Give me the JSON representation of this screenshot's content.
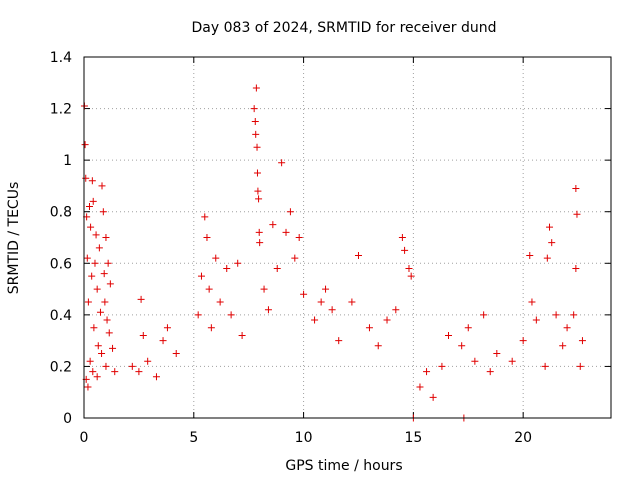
{
  "chart_data": {
    "type": "scatter",
    "title": "Day 083 of 2024, SRMTID for receiver dund",
    "xlabel": "GPS time / hours",
    "ylabel": "SRMTID / TECUs",
    "xlim": [
      0,
      24
    ],
    "ylim": [
      0,
      1.4
    ],
    "xticks": [
      0,
      5,
      10,
      15,
      20
    ],
    "xtick_labels": [
      "0",
      "5",
      "10",
      "15",
      "20"
    ],
    "yticks": [
      0,
      0.2,
      0.4,
      0.6,
      0.8,
      1.0,
      1.2,
      1.4
    ],
    "ytick_labels": [
      "0",
      "0.2",
      "0.4",
      "0.6",
      "0.8",
      "1",
      "1.2",
      "1.4"
    ],
    "grid": true,
    "marker": "+",
    "color": "#e00000",
    "series": [
      {
        "name": "SRMTID",
        "points": [
          [
            0.02,
            1.21
          ],
          [
            0.05,
            1.06
          ],
          [
            0.08,
            0.93
          ],
          [
            0.12,
            0.78
          ],
          [
            0.15,
            0.62
          ],
          [
            0.2,
            0.45
          ],
          [
            0.25,
            0.82
          ],
          [
            0.3,
            0.74
          ],
          [
            0.35,
            0.55
          ],
          [
            0.38,
            0.92
          ],
          [
            0.42,
            0.84
          ],
          [
            0.45,
            0.35
          ],
          [
            0.5,
            0.6
          ],
          [
            0.55,
            0.71
          ],
          [
            0.6,
            0.5
          ],
          [
            0.65,
            0.28
          ],
          [
            0.7,
            0.66
          ],
          [
            0.75,
            0.41
          ],
          [
            0.82,
            0.9
          ],
          [
            0.88,
            0.8
          ],
          [
            0.92,
            0.56
          ],
          [
            0.95,
            0.45
          ],
          [
            1.0,
            0.7
          ],
          [
            1.05,
            0.38
          ],
          [
            1.1,
            0.6
          ],
          [
            1.15,
            0.33
          ],
          [
            1.2,
            0.52
          ],
          [
            0.1,
            0.15
          ],
          [
            0.18,
            0.12
          ],
          [
            0.28,
            0.22
          ],
          [
            0.4,
            0.18
          ],
          [
            0.6,
            0.16
          ],
          [
            0.8,
            0.25
          ],
          [
            1.0,
            0.2
          ],
          [
            1.3,
            0.27
          ],
          [
            1.4,
            0.18
          ],
          [
            2.2,
            0.2
          ],
          [
            2.5,
            0.18
          ],
          [
            2.6,
            0.46
          ],
          [
            2.7,
            0.32
          ],
          [
            2.9,
            0.22
          ],
          [
            3.3,
            0.16
          ],
          [
            3.6,
            0.3
          ],
          [
            3.8,
            0.35
          ],
          [
            4.2,
            0.25
          ],
          [
            5.2,
            0.4
          ],
          [
            5.35,
            0.55
          ],
          [
            5.5,
            0.78
          ],
          [
            5.6,
            0.7
          ],
          [
            5.7,
            0.5
          ],
          [
            5.8,
            0.35
          ],
          [
            6.0,
            0.62
          ],
          [
            6.2,
            0.45
          ],
          [
            6.5,
            0.58
          ],
          [
            6.7,
            0.4
          ],
          [
            7.0,
            0.6
          ],
          [
            7.2,
            0.32
          ],
          [
            7.75,
            1.2
          ],
          [
            7.8,
            1.15
          ],
          [
            7.82,
            1.1
          ],
          [
            7.85,
            1.28
          ],
          [
            7.88,
            1.05
          ],
          [
            7.9,
            0.95
          ],
          [
            7.92,
            0.88
          ],
          [
            7.95,
            0.85
          ],
          [
            7.98,
            0.72
          ],
          [
            8.0,
            0.68
          ],
          [
            8.2,
            0.5
          ],
          [
            8.4,
            0.42
          ],
          [
            8.6,
            0.75
          ],
          [
            8.8,
            0.58
          ],
          [
            9.0,
            0.99
          ],
          [
            9.2,
            0.72
          ],
          [
            9.4,
            0.8
          ],
          [
            9.6,
            0.62
          ],
          [
            9.8,
            0.7
          ],
          [
            10.0,
            0.48
          ],
          [
            10.5,
            0.38
          ],
          [
            10.8,
            0.45
          ],
          [
            11.0,
            0.5
          ],
          [
            11.3,
            0.42
          ],
          [
            11.6,
            0.3
          ],
          [
            12.2,
            0.45
          ],
          [
            12.5,
            0.63
          ],
          [
            13.0,
            0.35
          ],
          [
            13.4,
            0.28
          ],
          [
            13.8,
            0.38
          ],
          [
            14.2,
            0.42
          ],
          [
            14.5,
            0.7
          ],
          [
            14.6,
            0.65
          ],
          [
            14.8,
            0.58
          ],
          [
            14.9,
            0.55
          ],
          [
            15.0,
            0.0
          ],
          [
            17.3,
            0.0
          ],
          [
            15.3,
            0.12
          ],
          [
            15.6,
            0.18
          ],
          [
            15.9,
            0.08
          ],
          [
            16.3,
            0.2
          ],
          [
            16.6,
            0.32
          ],
          [
            17.2,
            0.28
          ],
          [
            17.5,
            0.35
          ],
          [
            17.8,
            0.22
          ],
          [
            18.2,
            0.4
          ],
          [
            18.5,
            0.18
          ],
          [
            18.8,
            0.25
          ],
          [
            19.5,
            0.22
          ],
          [
            20.0,
            0.3
          ],
          [
            20.3,
            0.63
          ],
          [
            20.4,
            0.45
          ],
          [
            20.6,
            0.38
          ],
          [
            21.0,
            0.2
          ],
          [
            21.1,
            0.62
          ],
          [
            21.2,
            0.74
          ],
          [
            21.3,
            0.68
          ],
          [
            21.5,
            0.4
          ],
          [
            21.8,
            0.28
          ],
          [
            22.0,
            0.35
          ],
          [
            22.3,
            0.4
          ],
          [
            22.4,
            0.89
          ],
          [
            22.45,
            0.79
          ],
          [
            22.4,
            0.58
          ],
          [
            22.6,
            0.2
          ],
          [
            22.7,
            0.3
          ]
        ]
      }
    ]
  }
}
